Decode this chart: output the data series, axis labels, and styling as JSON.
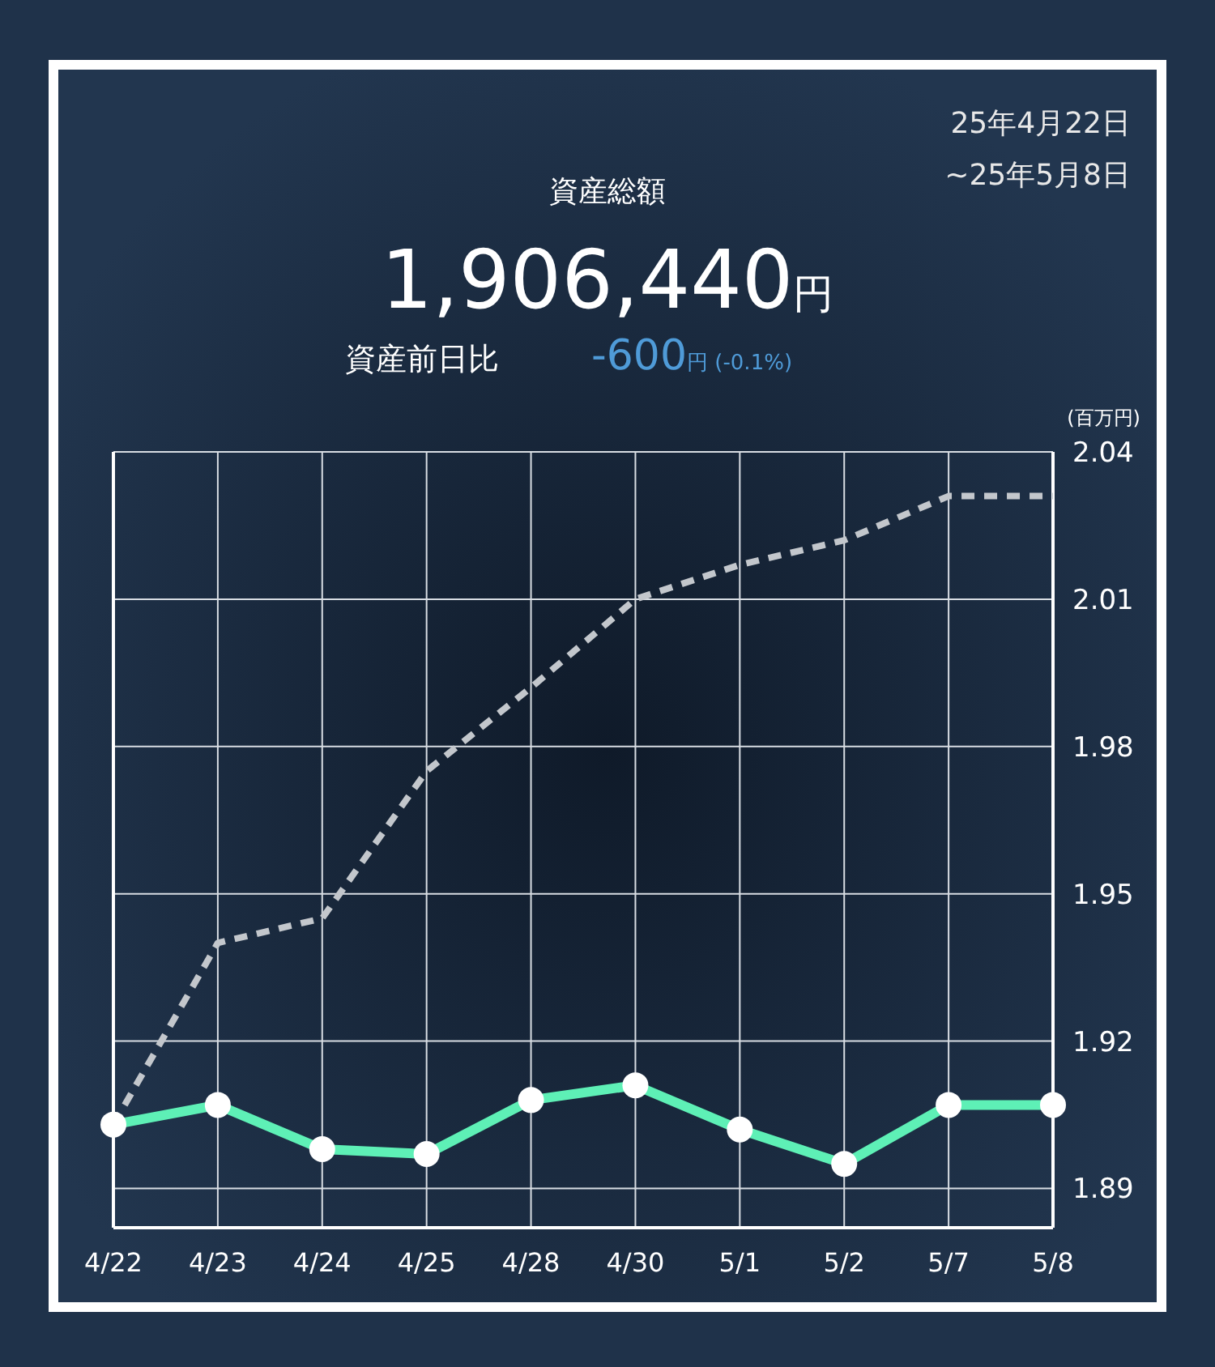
{
  "chart_data": {
    "type": "line",
    "title": "資産総額",
    "ylabel": "(百万円)",
    "annotations": [
      "25年4月22日",
      "~25年5月8日",
      "1,906,440円",
      "資産前日比",
      "-600円 (-0.1%)"
    ],
    "categories": [
      "4/22",
      "4/23",
      "4/24",
      "4/25",
      "4/28",
      "4/30",
      "5/1",
      "5/2",
      "5/7",
      "5/8"
    ],
    "series": [
      {
        "color": "#c3c7cc",
        "line_style": "dashed",
        "marker": "none",
        "values": [
          1.903,
          1.94,
          1.945,
          1.975,
          1.992,
          2.01,
          2.017,
          2.022,
          2.031,
          2.031
        ]
      },
      {
        "color": "#5ef0b6",
        "line_style": "solid",
        "marker": "circle",
        "values": [
          1.903,
          1.907,
          1.898,
          1.897,
          1.908,
          1.911,
          1.902,
          1.895,
          1.907,
          1.907
        ]
      }
    ],
    "ylim": [
      1.882,
      2.04
    ],
    "yticks": [
      1.89,
      1.92,
      1.95,
      1.98,
      2.01,
      2.04
    ],
    "grid": true
  }
}
